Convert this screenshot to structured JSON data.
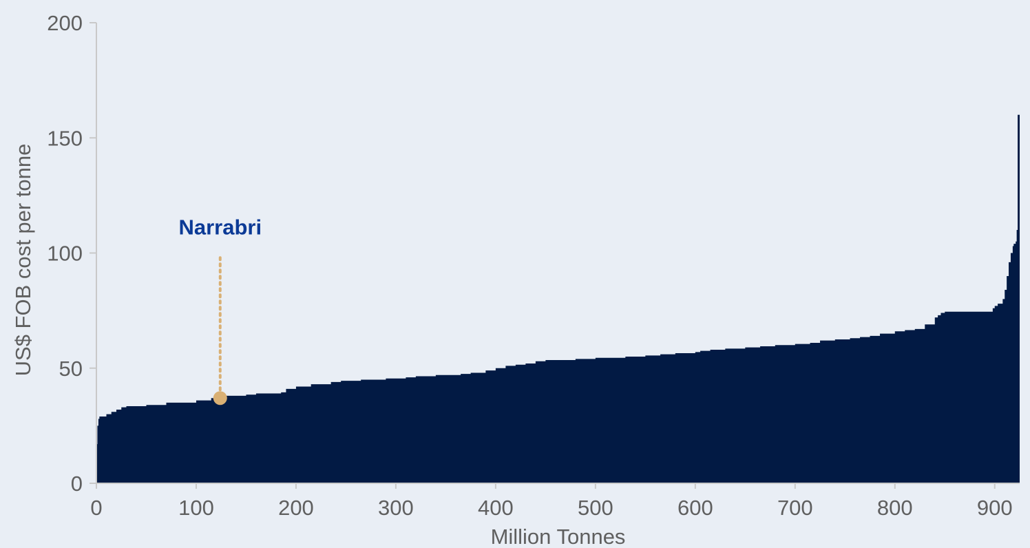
{
  "chart_data": {
    "type": "area",
    "subtype": "cost-curve-step",
    "title": "",
    "xlabel": "Million Tonnes",
    "ylabel": "US$ FOB cost per tonne",
    "xlim": [
      0,
      925
    ],
    "ylim": [
      0,
      200
    ],
    "x_ticks": [
      0,
      100,
      200,
      300,
      400,
      500,
      600,
      700,
      800,
      900
    ],
    "y_ticks": [
      0,
      50,
      100,
      150,
      200
    ],
    "grid": false,
    "legend": "none",
    "colors": {
      "fill": "#021a44",
      "marker": "#d9b074",
      "annotation_text": "#0b3a96",
      "background": "#e9eef5",
      "axis": "#c9c9c9"
    },
    "series": [
      {
        "x": [
          0,
          1,
          2,
          3,
          10,
          15,
          20,
          25,
          30,
          50,
          70,
          100,
          115,
          130,
          150,
          160,
          185,
          190,
          200,
          215,
          235,
          245,
          265,
          290,
          310,
          320,
          340,
          365,
          375,
          390,
          400,
          410,
          420,
          430,
          440,
          450,
          480,
          500,
          530,
          550,
          565,
          580,
          600,
          605,
          615,
          630,
          650,
          665,
          680,
          700,
          715,
          725,
          740,
          755,
          765,
          775,
          785,
          800,
          810,
          820,
          830,
          840,
          843,
          846,
          850,
          880,
          898,
          900,
          903,
          908,
          910,
          912,
          914,
          916,
          918,
          919,
          920,
          921,
          922,
          923,
          924.5
        ],
        "y": [
          17,
          25,
          28,
          29,
          30,
          31,
          32,
          33,
          33.5,
          34,
          35,
          36,
          37,
          38,
          38.5,
          39,
          39.5,
          41,
          42,
          43,
          44,
          44.5,
          45,
          45.5,
          46,
          46.5,
          47,
          47.5,
          48,
          49,
          50,
          51,
          51.5,
          52,
          53,
          53.5,
          54,
          54.5,
          55,
          55.5,
          56,
          56.5,
          57,
          57.5,
          58,
          58.5,
          59,
          59.5,
          60,
          60.5,
          61,
          62,
          62.5,
          63,
          63.5,
          64,
          65,
          66,
          66.5,
          67,
          69,
          72,
          73,
          74,
          74.5,
          74.5,
          76,
          77,
          78,
          80,
          84,
          90,
          96,
          100,
          103,
          104,
          104,
          105,
          110,
          160,
          160
        ]
      }
    ],
    "annotations": [
      {
        "label": "Narrabri",
        "x": 124,
        "y": 37,
        "label_y": 108,
        "stem_top_y": 98
      }
    ]
  }
}
